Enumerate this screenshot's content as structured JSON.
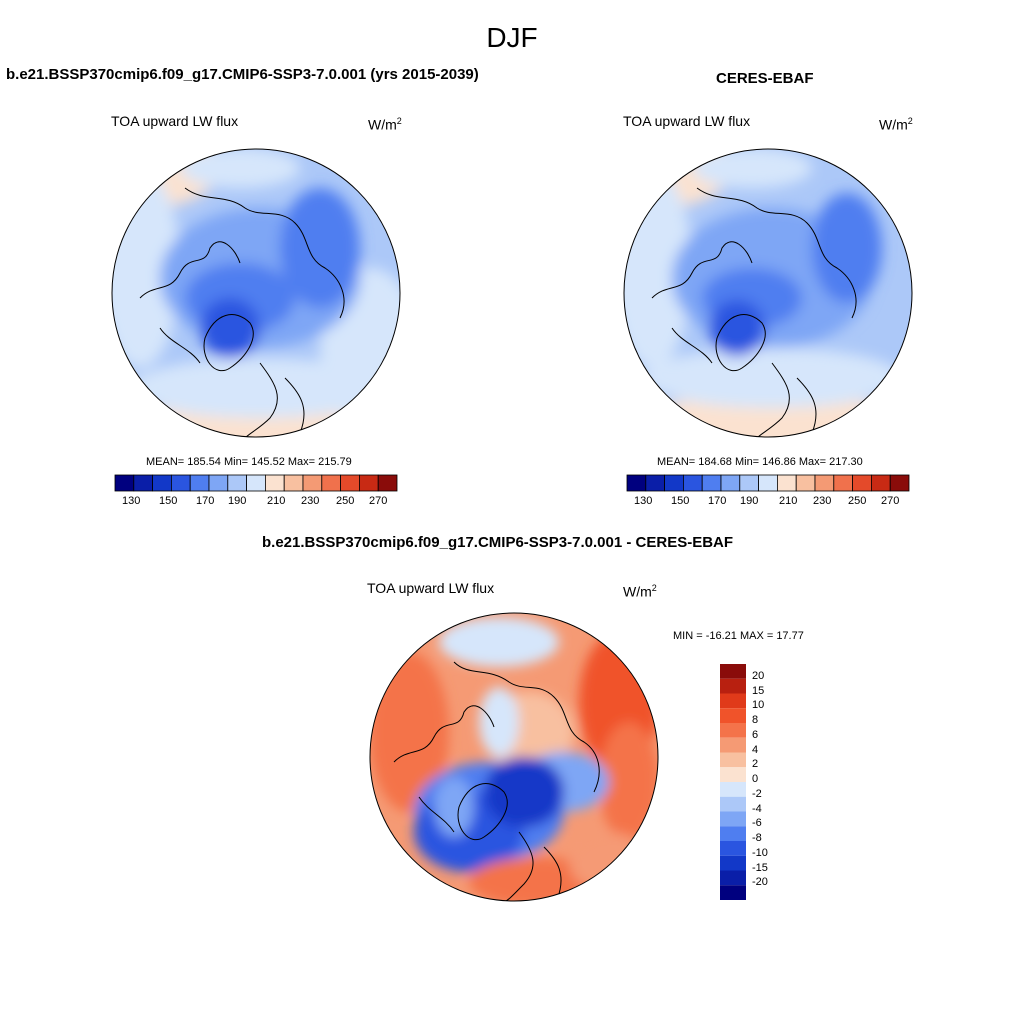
{
  "figure": {
    "title": "DJF"
  },
  "panels": [
    {
      "heading": "b.e21.BSSP370cmip6.f09_g17.CMIP6-SSP3-7.0.001 (yrs 2015-2039)",
      "variable": "TOA upward LW flux",
      "units_base": "W/m",
      "units_exp": "2",
      "stats_text": "MEAN= 185.54  Min= 145.52  Max= 215.79",
      "mean": 185.54,
      "min": 145.52,
      "max": 215.79,
      "colorbar_ticks": [
        "130",
        "150",
        "170",
        "190",
        "210",
        "230",
        "250",
        "270"
      ]
    },
    {
      "heading": "CERES-EBAF",
      "variable": "TOA upward LW flux",
      "units_base": "W/m",
      "units_exp": "2",
      "stats_text": "MEAN= 184.68  Min= 146.86  Max= 217.30",
      "mean": 184.68,
      "min": 146.86,
      "max": 217.3,
      "colorbar_ticks": [
        "130",
        "150",
        "170",
        "190",
        "210",
        "230",
        "250",
        "270"
      ]
    }
  ],
  "difference": {
    "heading": "b.e21.BSSP370cmip6.f09_g17.CMIP6-SSP3-7.0.001 - CERES-EBAF",
    "variable": "TOA upward LW flux",
    "units_base": "W/m",
    "units_exp": "2",
    "stats_text": "MIN = -16.21 MAX =  17.77",
    "min": -16.21,
    "max": 17.77,
    "colorbar_ticks": [
      "20",
      "15",
      "10",
      "8",
      "6",
      "4",
      "2",
      "0",
      "-2",
      "-4",
      "-6",
      "-8",
      "-10",
      "-15",
      "-20"
    ]
  },
  "colors": {
    "abs_scale": [
      "#00007f",
      "#0a1ea8",
      "#1238c8",
      "#2a55e0",
      "#4f7ef0",
      "#7ea6f5",
      "#acc8f8",
      "#d6e6fb",
      "#fbe2d0",
      "#f8c0a0",
      "#f49a74",
      "#f0714c",
      "#e44a2a",
      "#c82a14",
      "#8a0c0a"
    ],
    "diff_scale": [
      "#8a0c0a",
      "#b82010",
      "#e03a1a",
      "#f0532a",
      "#f4734a",
      "#f59a74",
      "#f8c0a0",
      "#fbe2d0",
      "#d6e6fb",
      "#acc8f8",
      "#7ea6f5",
      "#4f7ef0",
      "#2a55e0",
      "#1238c8",
      "#0a1ea8",
      "#00007f"
    ]
  }
}
